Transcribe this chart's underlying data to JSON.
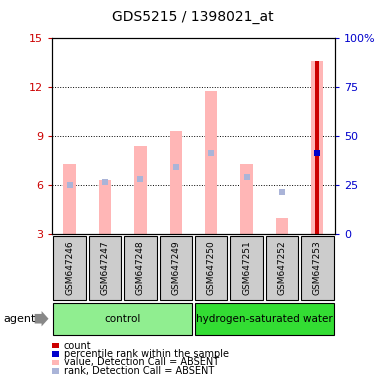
{
  "title": "GDS5215 / 1398021_at",
  "samples": [
    "GSM647246",
    "GSM647247",
    "GSM647248",
    "GSM647249",
    "GSM647250",
    "GSM647251",
    "GSM647252",
    "GSM647253"
  ],
  "groups": [
    {
      "label": "control",
      "color": "#90ee90",
      "samples_range": [
        0,
        3
      ]
    },
    {
      "label": "hydrogen-saturated water",
      "color": "#33dd33",
      "samples_range": [
        4,
        7
      ]
    }
  ],
  "ylim_left": [
    3,
    15
  ],
  "ylim_right": [
    0,
    100
  ],
  "yticks_left": [
    3,
    6,
    9,
    12,
    15
  ],
  "ytick_labels_left": [
    "3",
    "6",
    "9",
    "12",
    "15"
  ],
  "yticks_right": [
    0,
    25,
    50,
    75,
    100
  ],
  "ytick_labels_right": [
    "0",
    "25",
    "50",
    "75",
    "100%"
  ],
  "value_absent": [
    7.3,
    6.3,
    8.4,
    9.3,
    11.8,
    7.3,
    4.0,
    13.6
  ],
  "rank_absent": [
    6.0,
    6.2,
    6.4,
    7.1,
    8.0,
    6.5,
    5.6,
    8.0
  ],
  "count_value": 13.6,
  "count_index": 7,
  "percentile_rank_value": 8.0,
  "percentile_rank_index": 7,
  "bar_base": 3,
  "bar_width": 0.35,
  "color_value_absent": "#ffb6b6",
  "color_rank_absent": "#aab4d8",
  "color_count": "#cc0000",
  "color_percentile": "#0000cc",
  "left_axis_color": "#cc0000",
  "right_axis_color": "#0000cc",
  "agent_label": "agent",
  "bg_color": "#ffffff",
  "gray_box_color": "#cccccc",
  "legend_items": [
    {
      "color": "#cc0000",
      "label": "count"
    },
    {
      "color": "#0000cc",
      "label": "percentile rank within the sample"
    },
    {
      "color": "#ffb6b6",
      "label": "value, Detection Call = ABSENT"
    },
    {
      "color": "#aab4d8",
      "label": "rank, Detection Call = ABSENT"
    }
  ]
}
